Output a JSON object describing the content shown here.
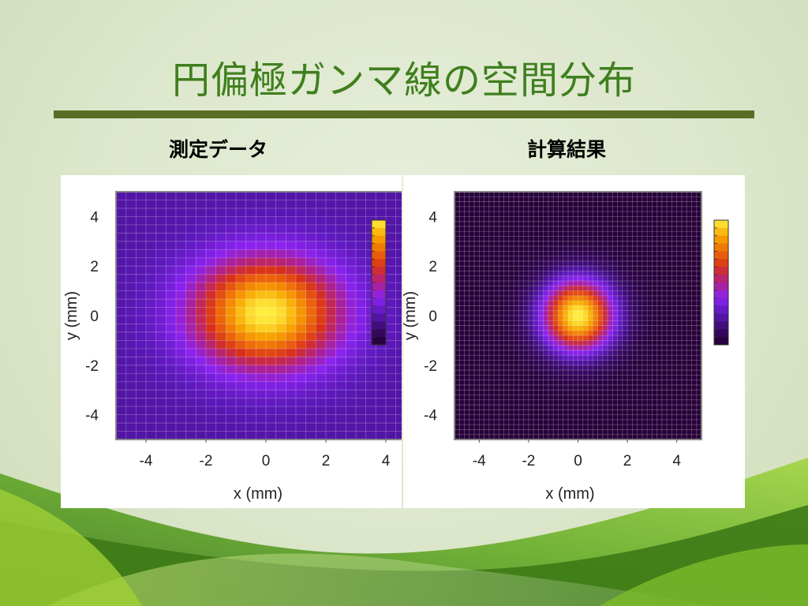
{
  "slide": {
    "title": "円偏極ガンマ線の空間分布",
    "left_subtitle": "測定データ",
    "right_subtitle": "計算結果"
  },
  "colors": {
    "title": "#3f7f1e",
    "rule": "#586e24",
    "colormap": [
      "#230030",
      "#3a0a6a",
      "#5a18b8",
      "#8a22f0",
      "#b0208a",
      "#d8301a",
      "#ee6a08",
      "#f8a800",
      "#fff040"
    ]
  },
  "chart_data": [
    {
      "type": "heatmap",
      "label": "測定データ",
      "xlabel": "x (mm)",
      "ylabel": "y (mm)",
      "xlim": [
        -5,
        5
      ],
      "ylim": [
        -5,
        5
      ],
      "xticks": [
        -4,
        -2,
        0,
        2,
        4
      ],
      "yticks": [
        4,
        2,
        0,
        -2,
        -4
      ],
      "grid": true,
      "bins": 30,
      "peak": {
        "x": 0.0,
        "y": 0.1
      },
      "sigma_x_mm": 1.7,
      "sigma_y_mm": 1.55,
      "background_level": 0.22,
      "colorbar": true
    },
    {
      "type": "heatmap",
      "label": "計算結果",
      "xlabel": "x (mm)",
      "ylabel": "y (mm)",
      "xlim": [
        -5,
        5
      ],
      "ylim": [
        -5,
        5
      ],
      "xticks": [
        -4,
        -2,
        0,
        2,
        4
      ],
      "yticks": [
        4,
        2,
        0,
        -2,
        -4
      ],
      "grid": true,
      "bins": 50,
      "peak": {
        "x": 0.0,
        "y": 0.0
      },
      "sigma_x_mm": 1.05,
      "sigma_y_mm": 1.05,
      "background_level": 0.02,
      "colorbar": true
    }
  ]
}
